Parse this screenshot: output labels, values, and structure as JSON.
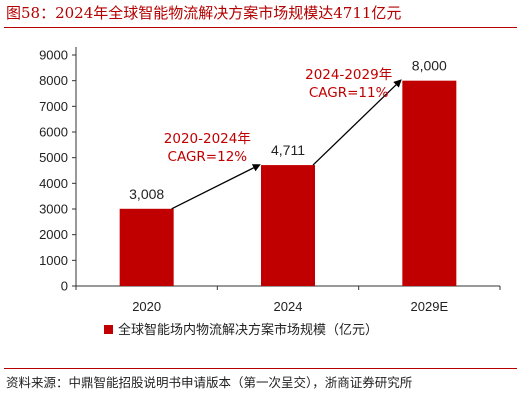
{
  "title": "图58：2024年全球智能物流解决方案市场规模达4711亿元",
  "source": "资料来源：中鼎智能招股说明书申请版本（第一次呈交），浙商证券研究所",
  "colors": {
    "bar": "#c00000",
    "title": "#b40000",
    "annotation": "#c00000"
  },
  "chart_data": {
    "type": "bar",
    "categories": [
      "2020",
      "2024",
      "2029E"
    ],
    "series": [
      {
        "name": "全球智能场内物流解决方案市场规模（亿元）",
        "values": [
          3008,
          4711,
          8000
        ]
      }
    ],
    "data_labels": [
      "3,008",
      "4,711",
      "8,000"
    ],
    "ylim": [
      0,
      9000
    ],
    "yticks": [
      0,
      1000,
      2000,
      3000,
      4000,
      5000,
      6000,
      7000,
      8000,
      9000
    ],
    "grid": false,
    "legend_position": "bottom",
    "annotations": [
      {
        "period": "2020-2024年",
        "rate": "CAGR=12%"
      },
      {
        "period": "2024-2029年",
        "rate": "CAGR=11%"
      }
    ]
  }
}
